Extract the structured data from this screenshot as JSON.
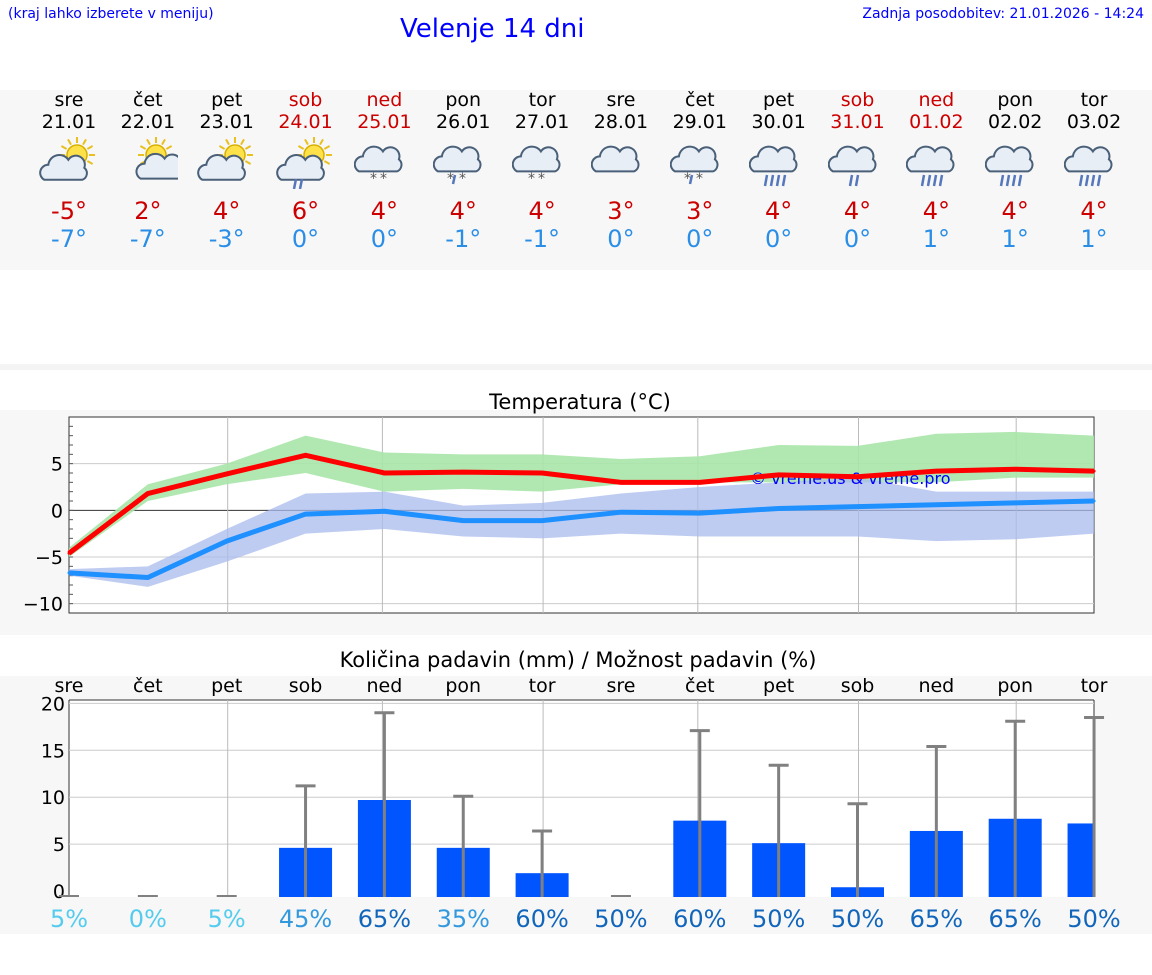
{
  "header": {
    "hint": "(kraj lahko izberete v meniju)",
    "title": "Velenje 14 dni",
    "updated": "Zadnja posodobitev: 21.01.2026 - 14:24"
  },
  "days": [
    {
      "name": "sre",
      "date": "21.01",
      "weekend": false,
      "icon": "sun-cloud-icon",
      "tmax": "-5°",
      "tmin": "-7°"
    },
    {
      "name": "čet",
      "date": "22.01",
      "weekend": false,
      "icon": "sun-small-cloud-icon",
      "tmax": "2°",
      "tmin": "-7°"
    },
    {
      "name": "pet",
      "date": "23.01",
      "weekend": false,
      "icon": "sun-cloud-icon",
      "tmax": "4°",
      "tmin": "-3°"
    },
    {
      "name": "sob",
      "date": "24.01",
      "weekend": true,
      "icon": "sun-cloud-rain-icon",
      "tmax": "6°",
      "tmin": "0°"
    },
    {
      "name": "ned",
      "date": "25.01",
      "weekend": true,
      "icon": "cloud-snow-icon",
      "tmax": "4°",
      "tmin": "0°"
    },
    {
      "name": "pon",
      "date": "26.01",
      "weekend": false,
      "icon": "cloud-sleet-icon",
      "tmax": "4°",
      "tmin": "-1°"
    },
    {
      "name": "tor",
      "date": "27.01",
      "weekend": false,
      "icon": "cloud-snow-icon",
      "tmax": "4°",
      "tmin": "-1°"
    },
    {
      "name": "sre",
      "date": "28.01",
      "weekend": false,
      "icon": "cloud-icon",
      "tmax": "3°",
      "tmin": "0°"
    },
    {
      "name": "čet",
      "date": "29.01",
      "weekend": false,
      "icon": "cloud-sleet-icon",
      "tmax": "3°",
      "tmin": "0°"
    },
    {
      "name": "pet",
      "date": "30.01",
      "weekend": false,
      "icon": "cloud-rain-icon",
      "tmax": "4°",
      "tmin": "0°"
    },
    {
      "name": "sob",
      "date": "31.01",
      "weekend": true,
      "icon": "cloud-light-rain-icon",
      "tmax": "4°",
      "tmin": "0°"
    },
    {
      "name": "ned",
      "date": "01.02",
      "weekend": true,
      "icon": "cloud-rain-icon",
      "tmax": "4°",
      "tmin": "1°"
    },
    {
      "name": "pon",
      "date": "02.02",
      "weekend": false,
      "icon": "cloud-rain-icon",
      "tmax": "4°",
      "tmin": "1°"
    },
    {
      "name": "tor",
      "date": "03.02",
      "weekend": false,
      "icon": "cloud-rain-icon",
      "tmax": "4°",
      "tmin": "1°"
    }
  ],
  "colors": {
    "max_line": "#ff0000",
    "min_line": "#1e90ff",
    "max_band": "#a8e6a8",
    "min_band": "#aabbee",
    "overlap_band": "#7ec4b2",
    "precip_bar": "#0055ff",
    "error_bar": "#808080",
    "weekend_text": "#cc0000",
    "max_text": "#cc0000",
    "min_text": "#2b8ee6"
  },
  "chart_data": [
    {
      "type": "line",
      "title": "Temperatura (°C)",
      "watermark": "© vreme.us & vreme.pro",
      "ylim": [
        -11,
        10
      ],
      "yticks": [
        5,
        0,
        -5,
        -10
      ],
      "ytick_labels": [
        "5",
        "0",
        "−5",
        "−10"
      ],
      "series": [
        {
          "name": "max",
          "values": [
            -4.6,
            1.8,
            3.9,
            5.9,
            4.0,
            4.1,
            4.0,
            3.0,
            3.0,
            3.8,
            3.6,
            4.2,
            4.4,
            4.2
          ],
          "band_low": [
            -5.0,
            1.0,
            2.8,
            4.0,
            2.0,
            2.3,
            2.0,
            2.8,
            3.0,
            3.0,
            3.0,
            3.0,
            3.5,
            3.5
          ],
          "band_high": [
            -4.0,
            2.8,
            5.0,
            8.0,
            6.2,
            6.0,
            6.0,
            5.5,
            5.8,
            7.0,
            6.9,
            8.2,
            8.4,
            8.0
          ]
        },
        {
          "name": "min",
          "values": [
            -6.7,
            -7.2,
            -3.3,
            -0.4,
            -0.1,
            -1.1,
            -1.1,
            -0.2,
            -0.3,
            0.2,
            0.4,
            0.6,
            0.8,
            1.0
          ],
          "band_low": [
            -7.0,
            -8.2,
            -5.5,
            -2.5,
            -2.0,
            -2.8,
            -3.0,
            -2.5,
            -2.8,
            -2.8,
            -2.8,
            -3.3,
            -3.1,
            -2.5
          ],
          "band_high": [
            -6.3,
            -6.0,
            -2.0,
            1.8,
            2.0,
            0.5,
            0.8,
            1.8,
            2.5,
            3.0,
            3.5,
            2.0,
            2.0,
            2.0
          ]
        }
      ]
    },
    {
      "type": "bar",
      "title": "Količina padavin (mm) / Možnost padavin (%)",
      "categories": [
        "sre",
        "čet",
        "pet",
        "sob",
        "ned",
        "pon",
        "tor",
        "sre",
        "čet",
        "pet",
        "sob",
        "ned",
        "pon",
        "tor"
      ],
      "ylim": [
        0,
        21
      ],
      "yticks": [
        20,
        15,
        10,
        5,
        0
      ],
      "values": [
        0,
        0,
        0,
        4.6,
        9.7,
        4.6,
        1.9,
        0,
        7.5,
        5.1,
        0.4,
        6.4,
        7.7,
        7.2
      ],
      "error_high": [
        0,
        0.1,
        0.1,
        11.2,
        19.0,
        10.1,
        6.4,
        0.1,
        17.1,
        13.4,
        9.3,
        15.4,
        18.1,
        18.5
      ],
      "probability": [
        "5%",
        "0%",
        "5%",
        "45%",
        "65%",
        "35%",
        "60%",
        "50%",
        "60%",
        "50%",
        "50%",
        "65%",
        "65%",
        "50%"
      ]
    }
  ]
}
